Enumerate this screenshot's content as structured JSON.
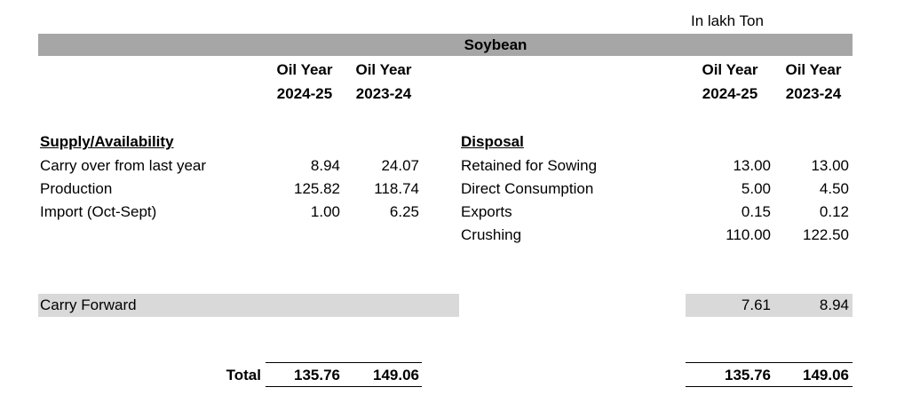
{
  "unit_note": "In lakh Ton",
  "title": "Soybean",
  "column_headers": {
    "line1": [
      "Oil Year",
      "Oil Year"
    ],
    "line2": [
      "2024-25",
      "2023-24"
    ]
  },
  "supply": {
    "heading": "Supply/Availability",
    "rows": [
      {
        "label": "Carry over from last year",
        "v2425": "8.94",
        "v2324": "24.07"
      },
      {
        "label": "Production",
        "v2425": "125.82",
        "v2324": "118.74"
      },
      {
        "label": "Import (Oct-Sept)",
        "v2425": "1.00",
        "v2324": "6.25"
      }
    ]
  },
  "disposal": {
    "heading": "Disposal",
    "rows": [
      {
        "label": "Retained for Sowing",
        "v2425": "13.00",
        "v2324": "13.00"
      },
      {
        "label": "Direct Consumption",
        "v2425": "5.00",
        "v2324": "4.50"
      },
      {
        "label": "Exports",
        "v2425": "0.15",
        "v2324": "0.12"
      },
      {
        "label": "Crushing",
        "v2425": "110.00",
        "v2324": "122.50"
      }
    ]
  },
  "carry_forward": {
    "label": "Carry Forward",
    "v2425": "7.61",
    "v2324": "8.94"
  },
  "totals": {
    "label": "Total",
    "supply": {
      "v2425": "135.76",
      "v2324": "149.06"
    },
    "disposal": {
      "v2425": "135.76",
      "v2324": "149.06"
    }
  }
}
